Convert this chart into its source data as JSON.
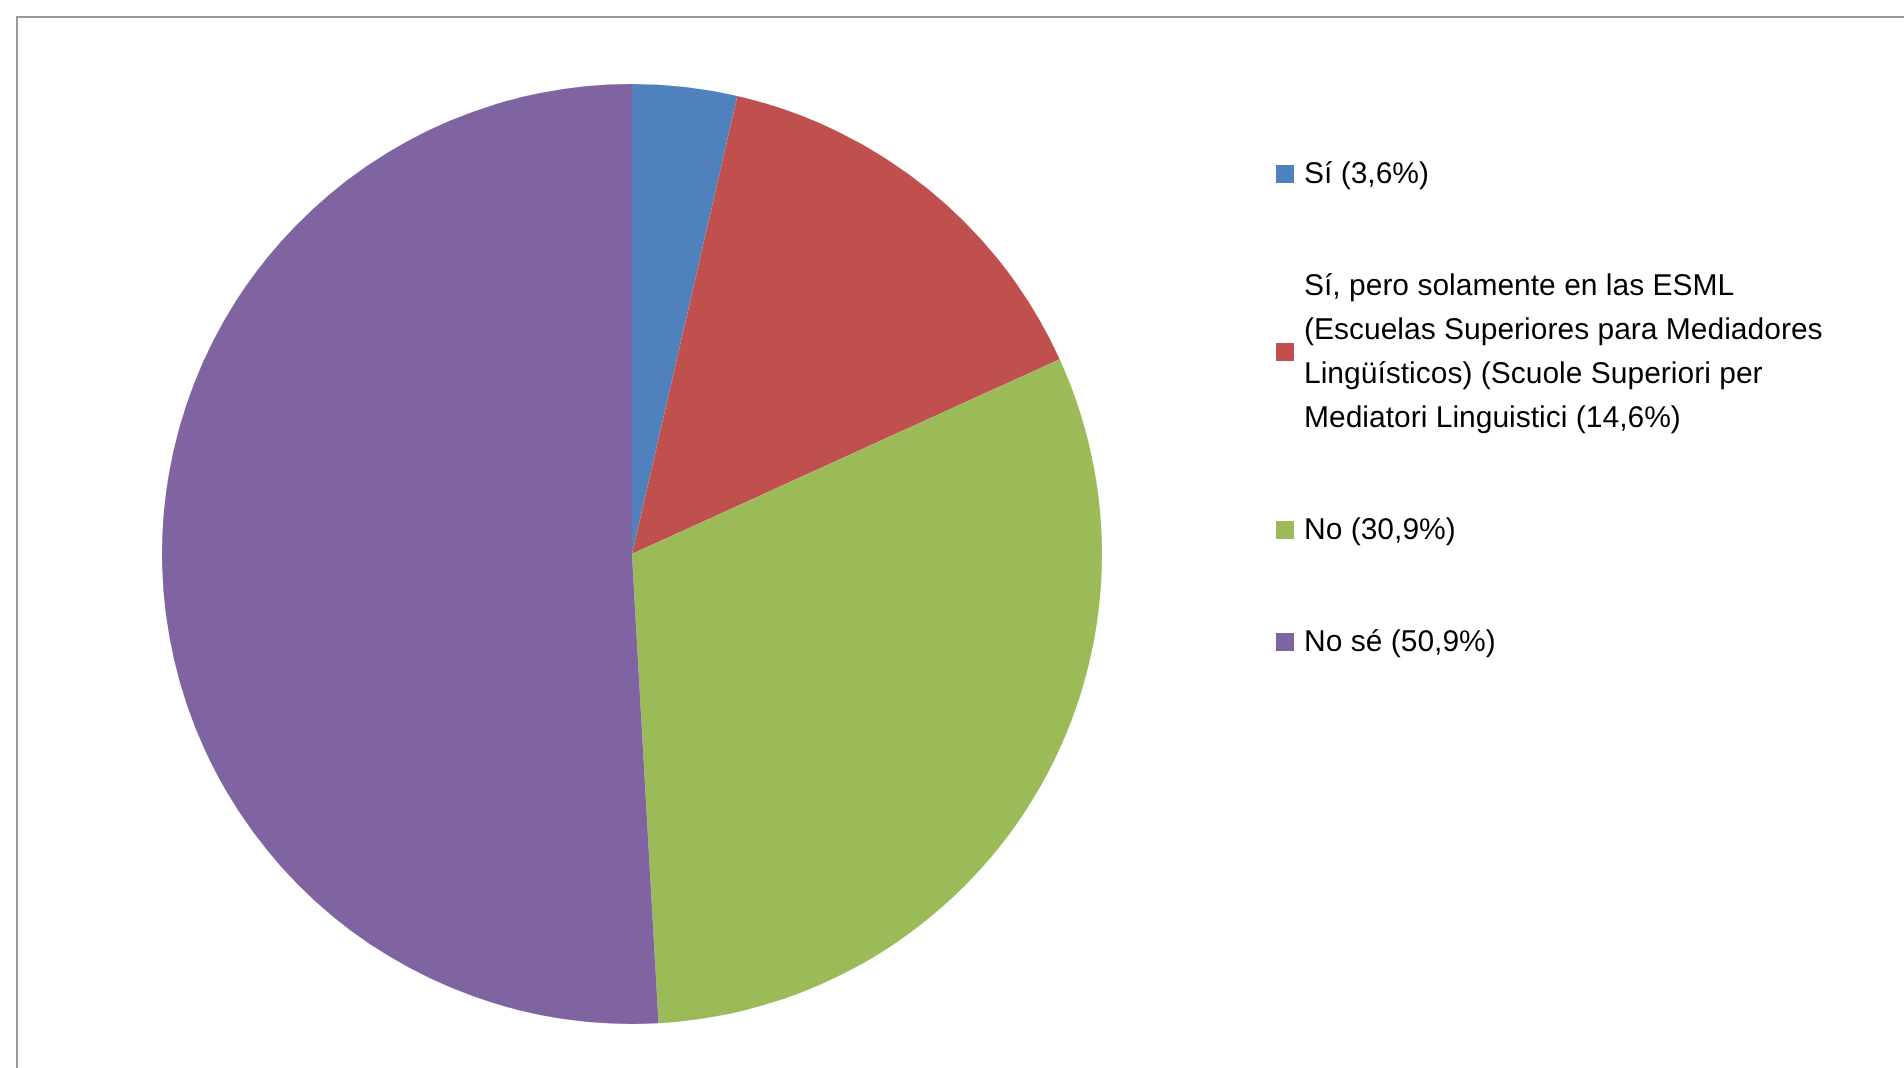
{
  "chart_data": {
    "type": "pie",
    "categories": [
      "Sí (3,6%)",
      "Sí, pero solamente en las ESML (Escuelas Superiores para Mediadores Lingüísticos) (Scuole Superiori per Mediatori Linguistici (14,6%)",
      "No (30,9%)",
      "No sé (50,9%)"
    ],
    "values": [
      3.6,
      14.6,
      30.9,
      50.9
    ],
    "colors": [
      "#4f81bd",
      "#c0504d",
      "#9bbb59",
      "#8064a2"
    ],
    "legend": "right"
  }
}
